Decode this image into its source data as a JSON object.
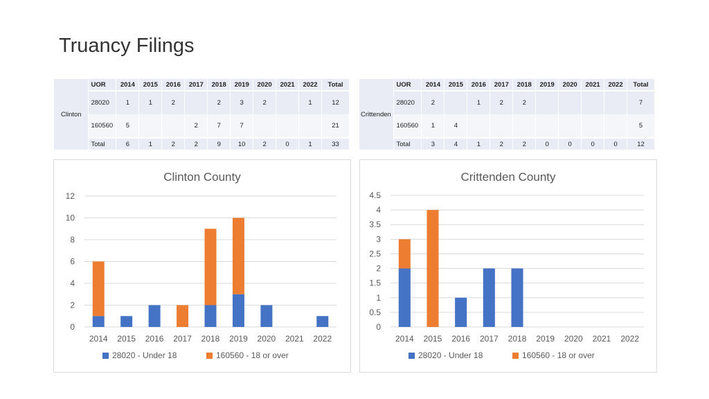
{
  "page": {
    "title": "Truancy Filings"
  },
  "colors": {
    "under18": "#4472C4",
    "over18": "#ED7D31",
    "grid": "#d9d9d9"
  },
  "tables": [
    {
      "county": "Clinton",
      "headers": [
        "UOR",
        "2014",
        "2015",
        "2016",
        "2017",
        "2018",
        "2019",
        "2020",
        "2021",
        "2022",
        "Total"
      ],
      "rows": [
        [
          "28020",
          "1",
          "1",
          "2",
          "",
          "2",
          "3",
          "2",
          "",
          "1",
          "12"
        ],
        [
          "160560",
          "5",
          "",
          "",
          "2",
          "7",
          "7",
          "",
          "",
          "",
          "21"
        ]
      ],
      "total_row": [
        "Total",
        "6",
        "1",
        "2",
        "2",
        "9",
        "10",
        "2",
        "0",
        "1",
        "33"
      ]
    },
    {
      "county": "Crittenden",
      "headers": [
        "UOR",
        "2014",
        "2015",
        "2016",
        "2017",
        "2018",
        "2019",
        "2020",
        "2021",
        "2022",
        "Total"
      ],
      "rows": [
        [
          "28020",
          "2",
          "",
          "1",
          "2",
          "2",
          "",
          "",
          "",
          "",
          "7"
        ],
        [
          "160560",
          "1",
          "4",
          "",
          "",
          "",
          "",
          "",
          "",
          "",
          "5"
        ]
      ],
      "total_row": [
        "Total",
        "3",
        "4",
        "1",
        "2",
        "2",
        "0",
        "0",
        "0",
        "0",
        "12"
      ]
    }
  ],
  "chart_data": [
    {
      "type": "bar",
      "stacked": true,
      "title": "Clinton County",
      "categories": [
        "2014",
        "2015",
        "2016",
        "2017",
        "2018",
        "2019",
        "2020",
        "2021",
        "2022"
      ],
      "series": [
        {
          "name": "28020 - Under 18",
          "values": [
            1,
            1,
            2,
            0,
            2,
            3,
            2,
            0,
            1
          ]
        },
        {
          "name": "160560 - 18 or over",
          "values": [
            5,
            0,
            0,
            2,
            7,
            7,
            0,
            0,
            0
          ]
        }
      ],
      "ylim": [
        0,
        12
      ],
      "yticks": [
        0,
        2,
        4,
        6,
        8,
        10,
        12
      ],
      "ytick_labels": [
        "0",
        "2",
        "4",
        "6",
        "8",
        "10",
        "12"
      ],
      "grid": true,
      "legend": "bottom"
    },
    {
      "type": "bar",
      "stacked": true,
      "title": "Crittenden County",
      "categories": [
        "2014",
        "2015",
        "2016",
        "2017",
        "2018",
        "2019",
        "2020",
        "2021",
        "2022"
      ],
      "series": [
        {
          "name": "28020 - Under 18",
          "values": [
            2,
            0,
            1,
            2,
            2,
            0,
            0,
            0,
            0
          ]
        },
        {
          "name": "160560 - 18 or over",
          "values": [
            1,
            4,
            0,
            0,
            0,
            0,
            0,
            0,
            0
          ]
        }
      ],
      "ylim": [
        0,
        4.5
      ],
      "yticks": [
        0,
        0.5,
        1,
        1.5,
        2,
        2.5,
        3,
        3.5,
        4,
        4.5
      ],
      "ytick_labels": [
        "0",
        "0.5",
        "1",
        "1.5",
        "2",
        "2.5",
        "3",
        "3.5",
        "4",
        "4.5"
      ],
      "grid": true,
      "legend": "bottom"
    }
  ]
}
